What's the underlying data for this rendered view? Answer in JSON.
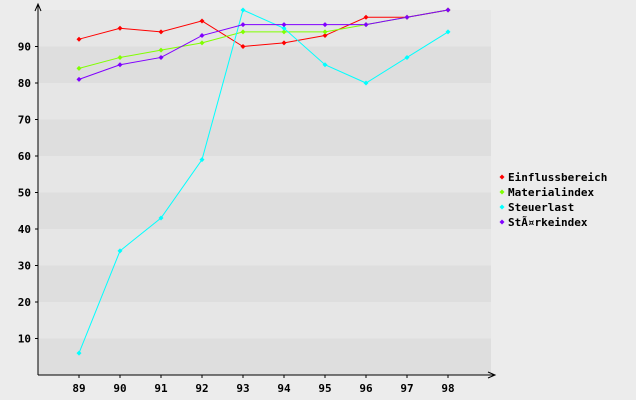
{
  "chart_data": {
    "type": "line",
    "title": "",
    "xlabel": "",
    "ylabel": "",
    "categories": [
      "89",
      "90",
      "91",
      "92",
      "93",
      "94",
      "95",
      "96",
      "97",
      "98"
    ],
    "ylim": [
      0,
      100
    ],
    "yticks": [
      10,
      20,
      30,
      40,
      50,
      60,
      70,
      80,
      90
    ],
    "grid": true,
    "legend_position": "right",
    "series": [
      {
        "name": "Einflussbereich",
        "color": "#ff0000",
        "values": [
          92,
          95,
          94,
          97,
          90,
          91,
          93,
          98,
          98,
          100
        ]
      },
      {
        "name": "Materialindex",
        "color": "#80ff00",
        "values": [
          84,
          87,
          89,
          91,
          94,
          94,
          94,
          96,
          98,
          100
        ]
      },
      {
        "name": "Steuerlast",
        "color": "#00ffff",
        "values": [
          6,
          34,
          43,
          59,
          100,
          95,
          85,
          80,
          87,
          94
        ]
      },
      {
        "name": "StÃ¤rkeindex",
        "color": "#8000ff",
        "values": [
          81,
          85,
          87,
          93,
          96,
          96,
          96,
          96,
          98,
          100
        ]
      }
    ]
  }
}
